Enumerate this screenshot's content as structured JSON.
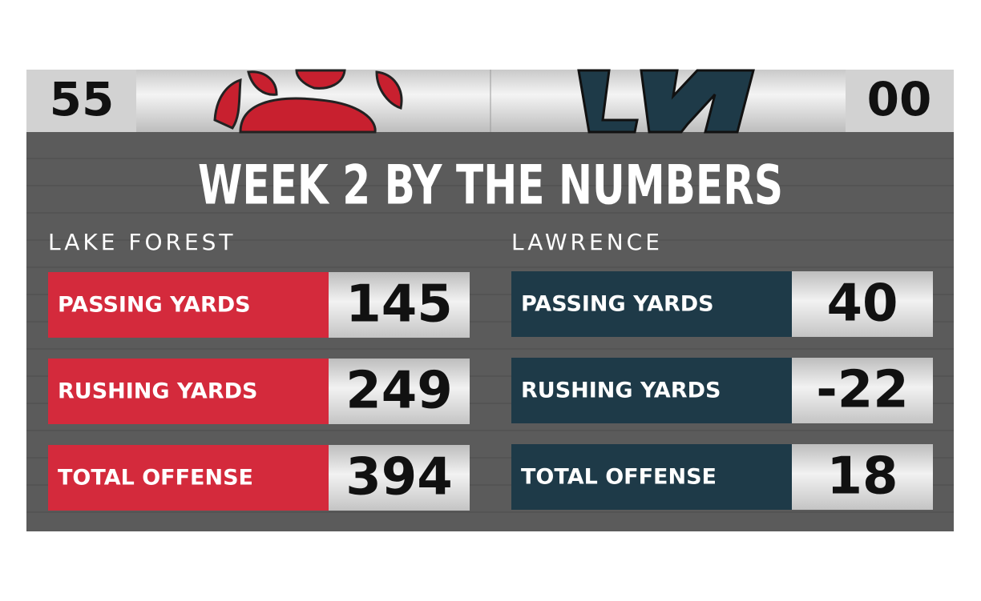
{
  "scoreboard": {
    "home_score": "55",
    "away_score": "00"
  },
  "title": "WEEK 2 BY THE NUMBERS",
  "teams": [
    {
      "name": "LAKE FOREST",
      "color": "#d42a3c",
      "stats": [
        {
          "label": "PASSING YARDS",
          "value": 145
        },
        {
          "label": "RUSHING YARDS",
          "value": 249
        },
        {
          "label": "TOTAL OFFENSE",
          "value": 394
        }
      ]
    },
    {
      "name": "LAWRENCE",
      "color": "#1e3a48",
      "stats": [
        {
          "label": "PASSING YARDS",
          "value": 40
        },
        {
          "label": "RUSHING YARDS",
          "value": -22
        },
        {
          "label": "TOTAL OFFENSE",
          "value": 18
        }
      ]
    }
  ]
}
